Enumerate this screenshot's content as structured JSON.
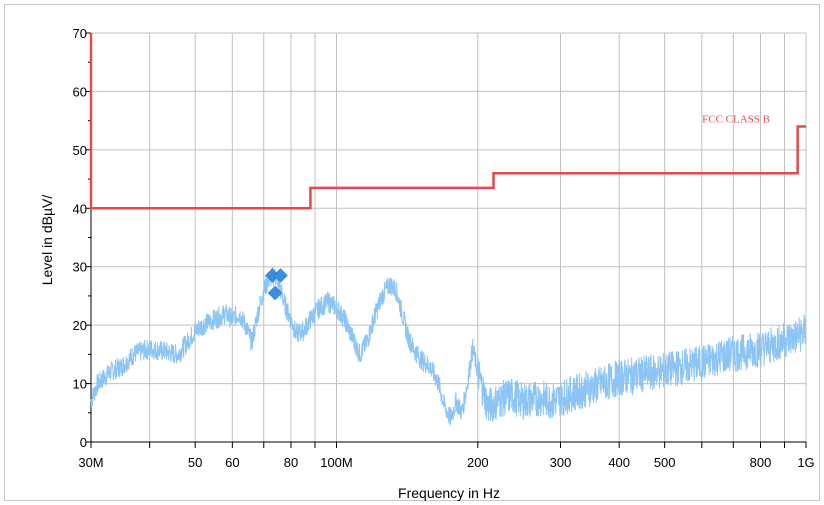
{
  "chart_data": {
    "type": "line",
    "title": "",
    "xlabel": "Frequency in Hz",
    "ylabel": "Level in dBµV/",
    "x_scale": "log",
    "xlim_hz": [
      30000000,
      1000000000
    ],
    "ylim": [
      0,
      70
    ],
    "grid": true,
    "x_ticks": [
      {
        "value": 30000000,
        "label": "30M"
      },
      {
        "value": 50000000,
        "label": "50"
      },
      {
        "value": 60000000,
        "label": "60"
      },
      {
        "value": 80000000,
        "label": "80"
      },
      {
        "value": 100000000,
        "label": "100M"
      },
      {
        "value": 200000000,
        "label": "200"
      },
      {
        "value": 300000000,
        "label": "300"
      },
      {
        "value": 400000000,
        "label": "400"
      },
      {
        "value": 500000000,
        "label": "500"
      },
      {
        "value": 800000000,
        "label": "800"
      },
      {
        "value": 1000000000,
        "label": "1G"
      }
    ],
    "x_minor_ticks": [
      40000000,
      70000000,
      90000000,
      600000000,
      700000000,
      900000000
    ],
    "y_ticks": [
      0,
      10,
      20,
      30,
      40,
      50,
      60,
      70
    ],
    "limit_line": {
      "label": "FCC CLASS B",
      "color": "#e84848",
      "segments": [
        {
          "from_hz": 30000000,
          "to_hz": 88000000,
          "level": 40
        },
        {
          "from_hz": 88000000,
          "to_hz": 216000000,
          "level": 43.5
        },
        {
          "from_hz": 216000000,
          "to_hz": 960000000,
          "level": 46
        },
        {
          "from_hz": 960000000,
          "to_hz": 1000000000,
          "level": 54
        }
      ]
    },
    "spectrum": {
      "color": "#8cc4f4",
      "points": [
        [
          30000000,
          7
        ],
        [
          31000000,
          10
        ],
        [
          33000000,
          12
        ],
        [
          35000000,
          13
        ],
        [
          37000000,
          15
        ],
        [
          40000000,
          16
        ],
        [
          43000000,
          15.5
        ],
        [
          46000000,
          15
        ],
        [
          48000000,
          17
        ],
        [
          50000000,
          19
        ],
        [
          52000000,
          20
        ],
        [
          55000000,
          21
        ],
        [
          58000000,
          22
        ],
        [
          60000000,
          21
        ],
        [
          62000000,
          22
        ],
        [
          64000000,
          20
        ],
        [
          66000000,
          17
        ],
        [
          68000000,
          22
        ],
        [
          70000000,
          26
        ],
        [
          72000000,
          28
        ],
        [
          74000000,
          28.5
        ],
        [
          76000000,
          26
        ],
        [
          78000000,
          23
        ],
        [
          80000000,
          21
        ],
        [
          82000000,
          18.5
        ],
        [
          85000000,
          19
        ],
        [
          88000000,
          21
        ],
        [
          92000000,
          23
        ],
        [
          96000000,
          24
        ],
        [
          100000000,
          23
        ],
        [
          104000000,
          21
        ],
        [
          108000000,
          18
        ],
        [
          112000000,
          15
        ],
        [
          116000000,
          17
        ],
        [
          120000000,
          21
        ],
        [
          125000000,
          25
        ],
        [
          130000000,
          27
        ],
        [
          134000000,
          26
        ],
        [
          138000000,
          22
        ],
        [
          142000000,
          18
        ],
        [
          147000000,
          15.5
        ],
        [
          152000000,
          14
        ],
        [
          158000000,
          13
        ],
        [
          165000000,
          10
        ],
        [
          170000000,
          6
        ],
        [
          175000000,
          4
        ],
        [
          180000000,
          7
        ],
        [
          185000000,
          5
        ],
        [
          190000000,
          10
        ],
        [
          195000000,
          16
        ],
        [
          200000000,
          12
        ],
        [
          205000000,
          9
        ],
        [
          210000000,
          6
        ],
        [
          220000000,
          7
        ],
        [
          235000000,
          8
        ],
        [
          250000000,
          7
        ],
        [
          270000000,
          7.5
        ],
        [
          290000000,
          7
        ],
        [
          310000000,
          8
        ],
        [
          340000000,
          9
        ],
        [
          370000000,
          10
        ],
        [
          400000000,
          11
        ],
        [
          440000000,
          11.5
        ],
        [
          480000000,
          12
        ],
        [
          520000000,
          12.5
        ],
        [
          560000000,
          13
        ],
        [
          600000000,
          13.5
        ],
        [
          650000000,
          14.5
        ],
        [
          700000000,
          15
        ],
        [
          750000000,
          15.5
        ],
        [
          800000000,
          16
        ],
        [
          850000000,
          16.5
        ],
        [
          900000000,
          17.5
        ],
        [
          950000000,
          18
        ],
        [
          1000000000,
          19
        ]
      ]
    },
    "markers": {
      "color": "#3a8edc",
      "points": [
        [
          73000000,
          28.5
        ],
        [
          76000000,
          28.5
        ],
        [
          74000000,
          25.5
        ]
      ]
    }
  }
}
